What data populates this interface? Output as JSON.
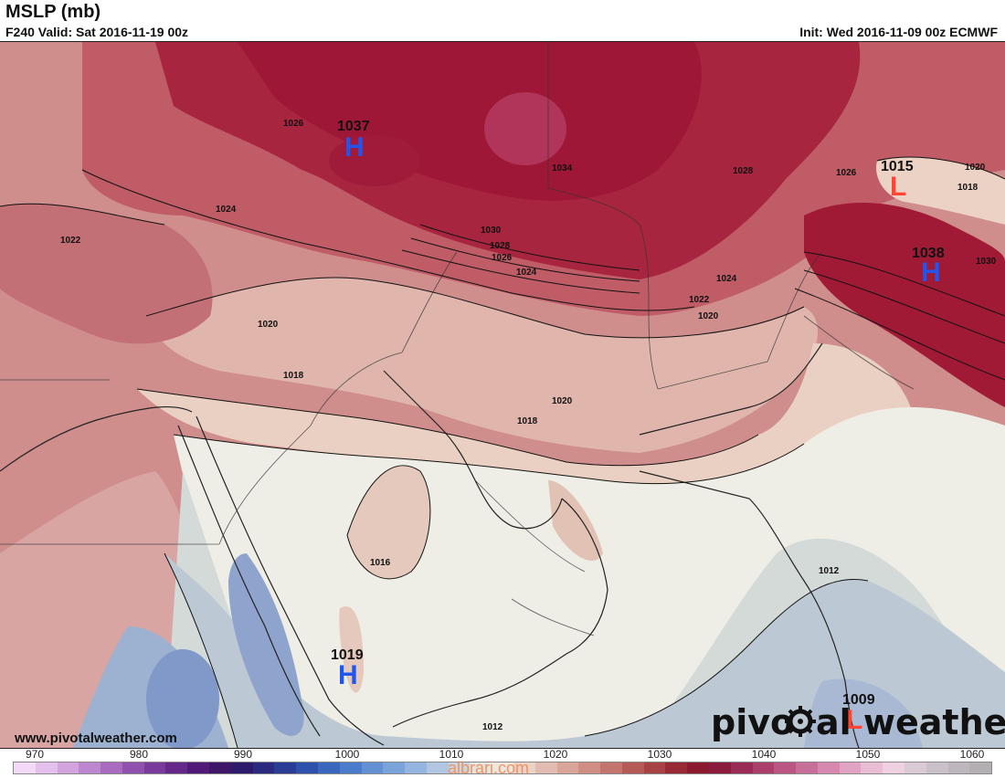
{
  "header": {
    "title": "MSLP (mb)",
    "valid": "F240 Valid: Sat 2016-11-19 00z",
    "init": "Init: Wed 2016-11-09 00z ECMWF"
  },
  "pressure_centers": [
    {
      "type": "H",
      "value": "1037"
    },
    {
      "type": "L",
      "value": "1015"
    },
    {
      "type": "H",
      "value": "1038"
    },
    {
      "type": "H",
      "value": "1019"
    },
    {
      "type": "L",
      "value": "1009"
    }
  ],
  "isobar_labels": [
    "1026",
    "1024",
    "1022",
    "1020",
    "1018",
    "1034",
    "1030",
    "1028",
    "1026",
    "1024",
    "1028",
    "1026",
    "1020",
    "1018",
    "1030",
    "1024",
    "1022",
    "1020",
    "1020",
    "1018",
    "1016",
    "1012",
    "1012"
  ],
  "branding": {
    "site_url": "www.pivotalweather.com",
    "logo_text_left": "pivo",
    "logo_text_right": "al weather",
    "watermark": "albrari.com"
  },
  "colorbar": {
    "ticks": [
      "970",
      "980",
      "990",
      "1000",
      "1010",
      "1020",
      "1030",
      "1040",
      "1050",
      "1060"
    ],
    "colors": [
      "#f2d9f5",
      "#e4c0ec",
      "#d2a3df",
      "#bf86d0",
      "#a96ac0",
      "#9050ae",
      "#7a3a9c",
      "#65278a",
      "#521a78",
      "#3e1668",
      "#2e1a6a",
      "#2a2a80",
      "#2a3d96",
      "#2e52ab",
      "#3a67bd",
      "#4a7ccb",
      "#6290d3",
      "#7aa3da",
      "#94b5df",
      "#b0c6e1",
      "#cad6df",
      "#e2e5de",
      "#eee5dc",
      "#ead2c7",
      "#e2bcb0",
      "#d9a59a",
      "#cf8d84",
      "#c3746d",
      "#b65a58",
      "#a74144",
      "#982a36",
      "#8c1a2f",
      "#8a1b3d",
      "#9a2b56",
      "#aa3f6c",
      "#bb5683",
      "#c96e98",
      "#d688ae",
      "#e1a3c2",
      "#e9bdd4",
      "#efd0e0",
      "#d9cad6",
      "#c9c0c9",
      "#bdb6bc",
      "#b3afb3"
    ]
  }
}
